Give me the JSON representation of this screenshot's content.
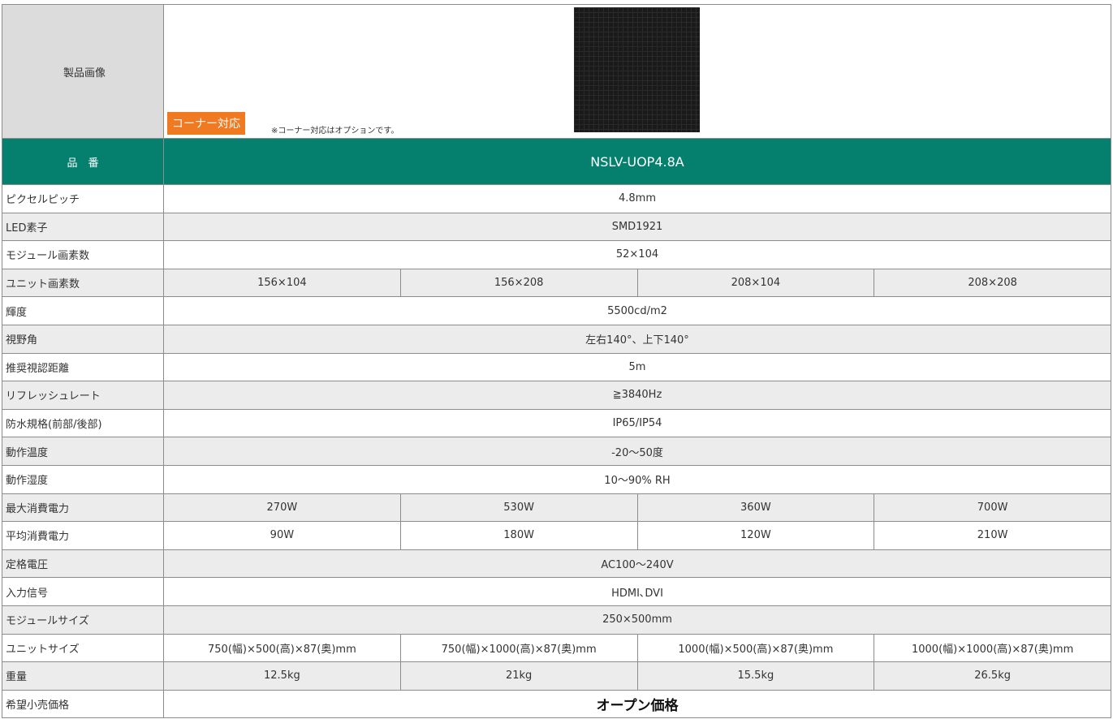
{
  "header": {
    "label": "製品画像",
    "badge": "コーナー対応",
    "note": "※コーナー対応はオプションです。"
  },
  "model": {
    "label": "品　番",
    "value": "NSLV-UOP4.8A"
  },
  "table": {
    "rows": [
      [
        "ピクセルピッチ",
        "4.8mm"
      ],
      [
        "LED素子",
        "SMD1921"
      ],
      [
        "モジュール画素数",
        "52×104"
      ],
      [
        "ユニット画素数",
        "156×104",
        "156×208",
        "208×104",
        "208×208"
      ],
      [
        "輝度",
        "5500cd/m2"
      ],
      [
        "視野角",
        "左右140°、上下140°"
      ],
      [
        "推奨視認距離",
        "5m"
      ],
      [
        "リフレッシュレート",
        "≧3840Hz"
      ],
      [
        "防水規格(前部/後部)",
        "IP65/IP54"
      ],
      [
        "動作温度",
        "-20～50度"
      ],
      [
        "動作湿度",
        "10～90% RH"
      ],
      [
        "最大消費電力",
        "270W",
        "530W",
        "360W",
        "700W"
      ],
      [
        "平均消費電力",
        "90W",
        "180W",
        "120W",
        "210W"
      ],
      [
        "定格電圧",
        "AC100～240V"
      ],
      [
        "入力信号",
        "HDMI､DVI"
      ],
      [
        "モジュールサイズ",
        "250×500mm"
      ],
      [
        "ユニットサイズ",
        "750(幅)×500(高)×87(奥)mm",
        "750(幅)×1000(高)×87(奥)mm",
        "1000(幅)×500(高)×87(奥)mm",
        "1000(幅)×1000(高)×87(奥)mm"
      ],
      [
        "重量",
        "12.5kg",
        "21kg",
        "15.5kg",
        "26.5kg"
      ],
      [
        "希望小売価格",
        "オープン価格"
      ]
    ]
  }
}
